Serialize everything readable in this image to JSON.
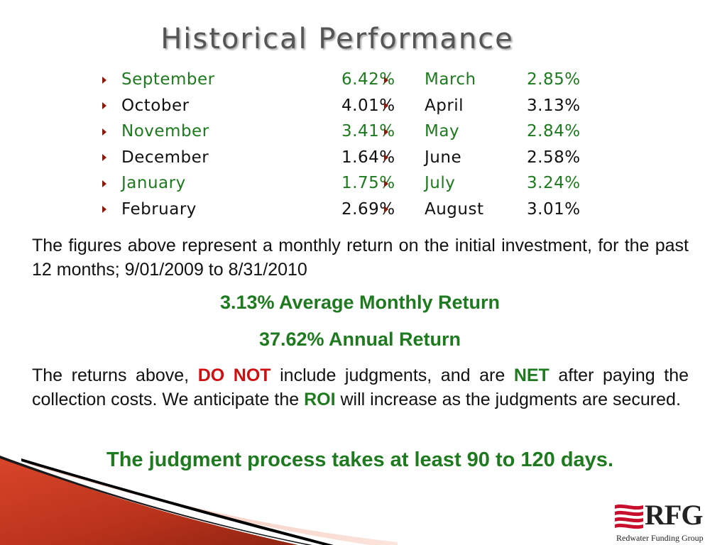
{
  "title": "Historical Performance",
  "months_left": [
    {
      "month": "September",
      "pct": "6.42%",
      "color": "green"
    },
    {
      "month": "October",
      "pct": "4.01%",
      "color": "black"
    },
    {
      "month": "November",
      "pct": "3.41%",
      "color": "green"
    },
    {
      "month": "December",
      "pct": "1.64%",
      "color": "black"
    },
    {
      "month": "January",
      "pct": "1.75%",
      "color": "green"
    },
    {
      "month": "February",
      "pct": "2.69%",
      "color": "black"
    }
  ],
  "months_right": [
    {
      "month": "March",
      "pct": "2.85%",
      "color": "green"
    },
    {
      "month": "April",
      "pct": "3.13%",
      "color": "black"
    },
    {
      "month": "May",
      "pct": "2.84%",
      "color": "green"
    },
    {
      "month": "June",
      "pct": "2.58%",
      "color": "black"
    },
    {
      "month": "July",
      "pct": "3.24%",
      "color": "green"
    },
    {
      "month": "August",
      "pct": "3.01%",
      "color": "black"
    }
  ],
  "paragraph1": "The figures above represent a monthly return on the initial investment, for the past 12 months;  9/01/2009  to  8/31/2010",
  "average_return": "3.13%  Average Monthly Return",
  "annual_return": "37.62%  Annual Return",
  "paragraph2": {
    "part1": "The returns above, ",
    "do_not": "DO NOT",
    "part2": " include judgments, and are ",
    "net": "NET",
    "part3": " after paying the collection costs.  We anticipate the ",
    "roi": "ROI",
    "part4": " will increase as the judgments are secured."
  },
  "process_note": "The judgment process takes at least 90 to 120 days.",
  "logo": {
    "word": "RFG",
    "subtitle": "Redwater Funding Group"
  },
  "colors": {
    "green": "#1e7a1e",
    "red": "#d01010",
    "title_gray": "#555555",
    "accent": "#c0391b"
  }
}
